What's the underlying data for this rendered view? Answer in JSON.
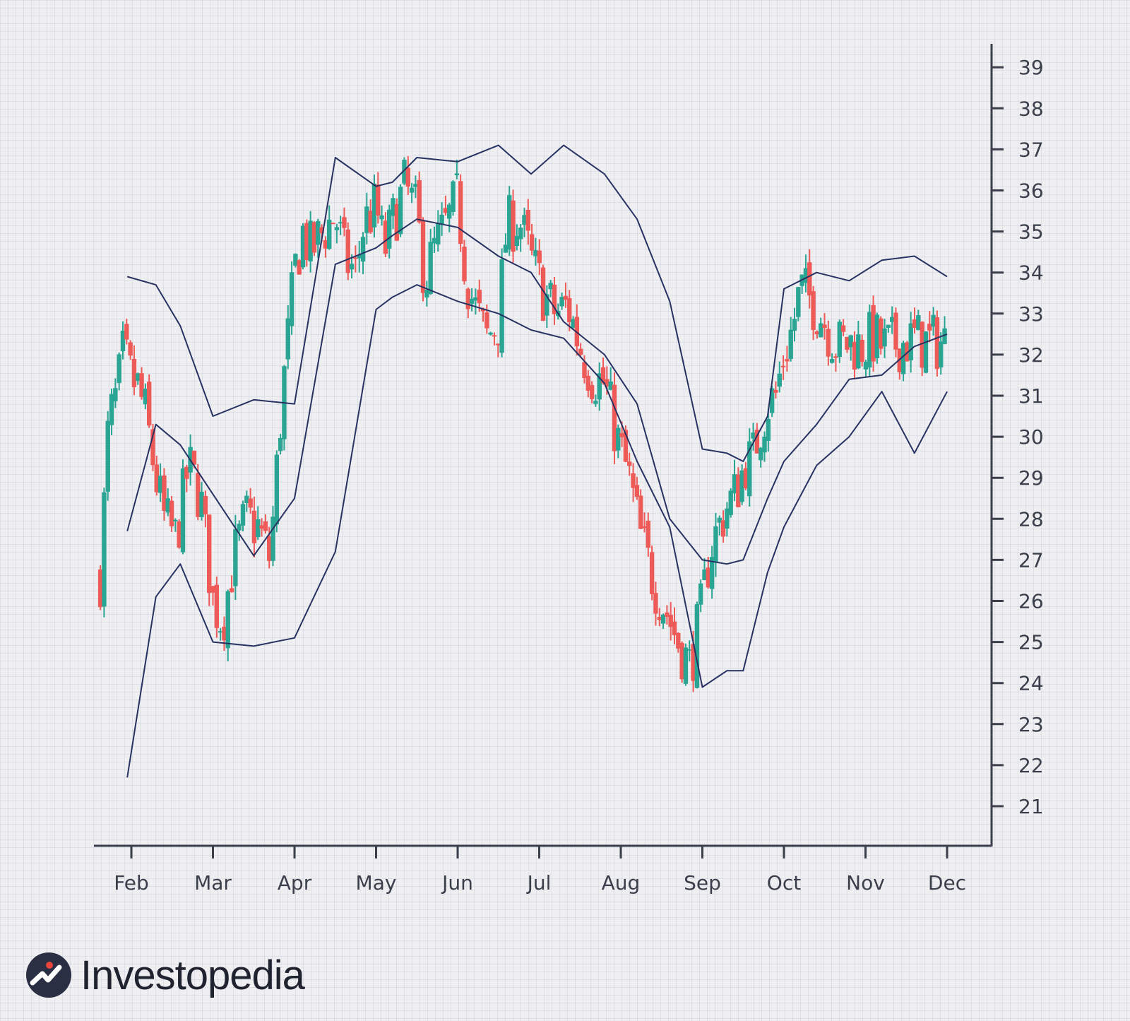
{
  "brand": {
    "name": "Investopedia",
    "logo_icon": "investopedia-logo-icon",
    "logo_color": "#2b2f44",
    "accent": "#e8453c"
  },
  "colors": {
    "up": "#2aa493",
    "down": "#ee5a58",
    "band": "#283262",
    "axis": "#3a3f4b"
  },
  "chart_data": {
    "type": "candlestick",
    "indicator": "bollinger-bands",
    "title": "",
    "xlabel": "",
    "ylabel": "",
    "x_ticks": [
      "Feb",
      "Mar",
      "Apr",
      "May",
      "Jun",
      "Jul",
      "Aug",
      "Sep",
      "Oct",
      "Nov",
      "Dec"
    ],
    "y_ticks": [
      21,
      22,
      23,
      24,
      25,
      26,
      27,
      28,
      29,
      30,
      31,
      32,
      33,
      34,
      35,
      36,
      37,
      38,
      39
    ],
    "ylim": [
      20,
      39.5
    ],
    "xlim": [
      0.55,
      11.55
    ],
    "y_axis_side": "right",
    "grid": true,
    "price_path": {
      "x": [
        0.62,
        0.72,
        0.82,
        0.9,
        1.0,
        1.08,
        1.18,
        1.3,
        1.4,
        1.55,
        1.7,
        1.85,
        2.0,
        2.12,
        2.25,
        2.4,
        2.55,
        2.7,
        2.85,
        3.0,
        3.1,
        3.2,
        3.35,
        3.5,
        3.62,
        3.75,
        3.85,
        4.0,
        4.1,
        4.2,
        4.35,
        4.5,
        4.6,
        4.7,
        4.85,
        5.0,
        5.1,
        5.2,
        5.35,
        5.5,
        5.6,
        5.75,
        5.9,
        6.05,
        6.2,
        6.35,
        6.5,
        6.65,
        6.8,
        6.95,
        7.1,
        7.25,
        7.4,
        7.55,
        7.7,
        7.85,
        8.0,
        8.1,
        8.2,
        8.3,
        8.4,
        8.5,
        8.55,
        8.6,
        8.7,
        8.8,
        8.9,
        9.0,
        9.1,
        9.2,
        9.35,
        9.5,
        9.65,
        9.8,
        9.95,
        10.1,
        10.2,
        10.3,
        10.4,
        10.5,
        10.6,
        10.7,
        10.8,
        10.9,
        11.0
      ],
      "y": [
        26.6,
        30.3,
        31.0,
        32.0,
        31.4,
        31.2,
        30.5,
        29.0,
        28.0,
        27.5,
        29.3,
        28.5,
        26.0,
        25.5,
        27.0,
        28.0,
        27.8,
        27.0,
        31.0,
        34.0,
        35.0,
        34.5,
        35.0,
        35.4,
        34.3,
        34.0,
        35.2,
        35.6,
        34.5,
        35.2,
        36.1,
        35.4,
        33.8,
        34.5,
        35.1,
        35.8,
        34.0,
        33.2,
        32.4,
        32.8,
        35.1,
        35.3,
        34.3,
        33.5,
        33.0,
        33.2,
        32.2,
        31.5,
        31.3,
        30.0,
        29.0,
        27.5,
        26.5,
        25.8,
        25.0,
        24.4,
        25.9,
        27.3,
        27.8,
        28.3,
        28.6,
        29.2,
        29.5,
        29.3,
        30.2,
        30.8,
        31.0,
        32.0,
        32.6,
        33.6,
        33.3,
        32.8,
        32.2,
        32.3,
        32.2,
        32.4,
        32.2,
        32.2,
        32.3,
        32.3,
        32.4,
        32.3,
        32.3,
        32.3,
        32.3
      ]
    },
    "bands": {
      "x": [
        0.95,
        1.3,
        1.6,
        2.0,
        2.5,
        3.0,
        3.5,
        4.0,
        4.2,
        4.5,
        5.0,
        5.5,
        5.9,
        6.3,
        6.8,
        7.2,
        7.6,
        8.0,
        8.3,
        8.5,
        8.8,
        9.0,
        9.4,
        9.8,
        10.2,
        10.6,
        11.0
      ],
      "upper": [
        33.9,
        33.7,
        32.7,
        30.5,
        30.9,
        30.8,
        36.8,
        36.1,
        36.2,
        36.8,
        36.7,
        37.1,
        36.4,
        37.1,
        36.4,
        35.3,
        33.3,
        29.7,
        29.6,
        29.4,
        30.5,
        33.6,
        34.0,
        33.8,
        34.3,
        34.4,
        33.9
      ],
      "middle": [
        27.7,
        30.3,
        29.8,
        28.6,
        27.1,
        28.5,
        34.2,
        34.6,
        34.9,
        35.3,
        35.1,
        34.4,
        34.0,
        32.8,
        32.0,
        30.8,
        28.0,
        27.0,
        26.9,
        27.0,
        28.5,
        29.4,
        30.3,
        31.4,
        31.5,
        32.2,
        32.5
      ],
      "lower": [
        21.7,
        26.1,
        26.9,
        25.0,
        24.9,
        25.1,
        27.2,
        33.1,
        33.4,
        33.7,
        33.3,
        33.0,
        32.6,
        32.4,
        31.3,
        29.4,
        27.8,
        23.9,
        24.3,
        24.3,
        26.7,
        27.8,
        29.3,
        30.0,
        31.1,
        29.6,
        31.1
      ]
    }
  }
}
